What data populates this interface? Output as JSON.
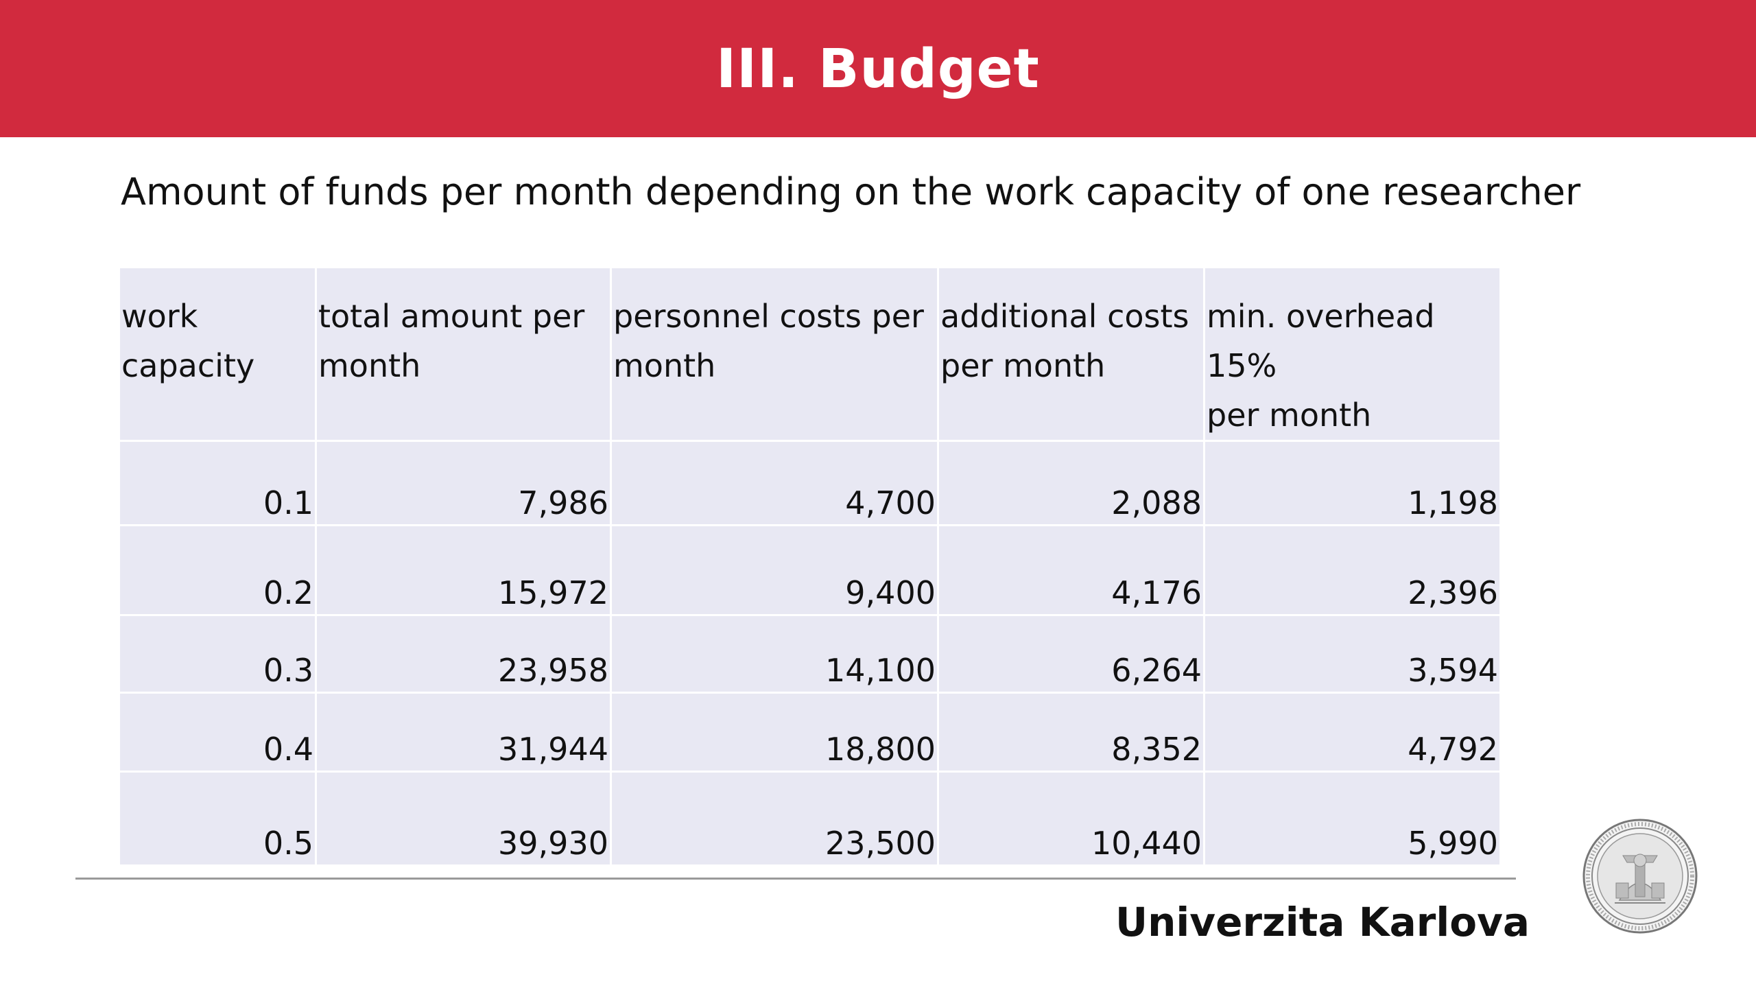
{
  "slide": {
    "title": "III. Budget",
    "subtitle": "Amount of funds per month depending on the work capacity of one researcher"
  },
  "table": {
    "headers": {
      "work_capacity": [
        "work",
        "capacity"
      ],
      "total_amount": [
        "total amount per",
        "month"
      ],
      "personnel_costs": [
        "personnel costs per",
        "month"
      ],
      "additional_costs": [
        "additional costs",
        "per month"
      ],
      "min_overhead": [
        "min. overhead 15%",
        "per month"
      ]
    },
    "rows": [
      [
        "0.1",
        "7,986",
        "4,700",
        "2,088",
        "1,198"
      ],
      [
        "0.2",
        "15,972",
        "9,400",
        "4,176",
        "2,396"
      ],
      [
        "0.3",
        "23,958",
        "14,100",
        "6,264",
        "3,594"
      ],
      [
        "0.4",
        "31,944",
        "18,800",
        "8,352",
        "4,792"
      ],
      [
        "0.5",
        "39,930",
        "23,500",
        "10,440",
        "5,990"
      ]
    ]
  },
  "footer": {
    "university": "Univerzita Karlova",
    "seal_icon": "university-seal-icon"
  },
  "colors": {
    "header_red": "#d12a3e",
    "table_fill": "#e8e8f3",
    "rule_gray": "#9a9a9a"
  }
}
